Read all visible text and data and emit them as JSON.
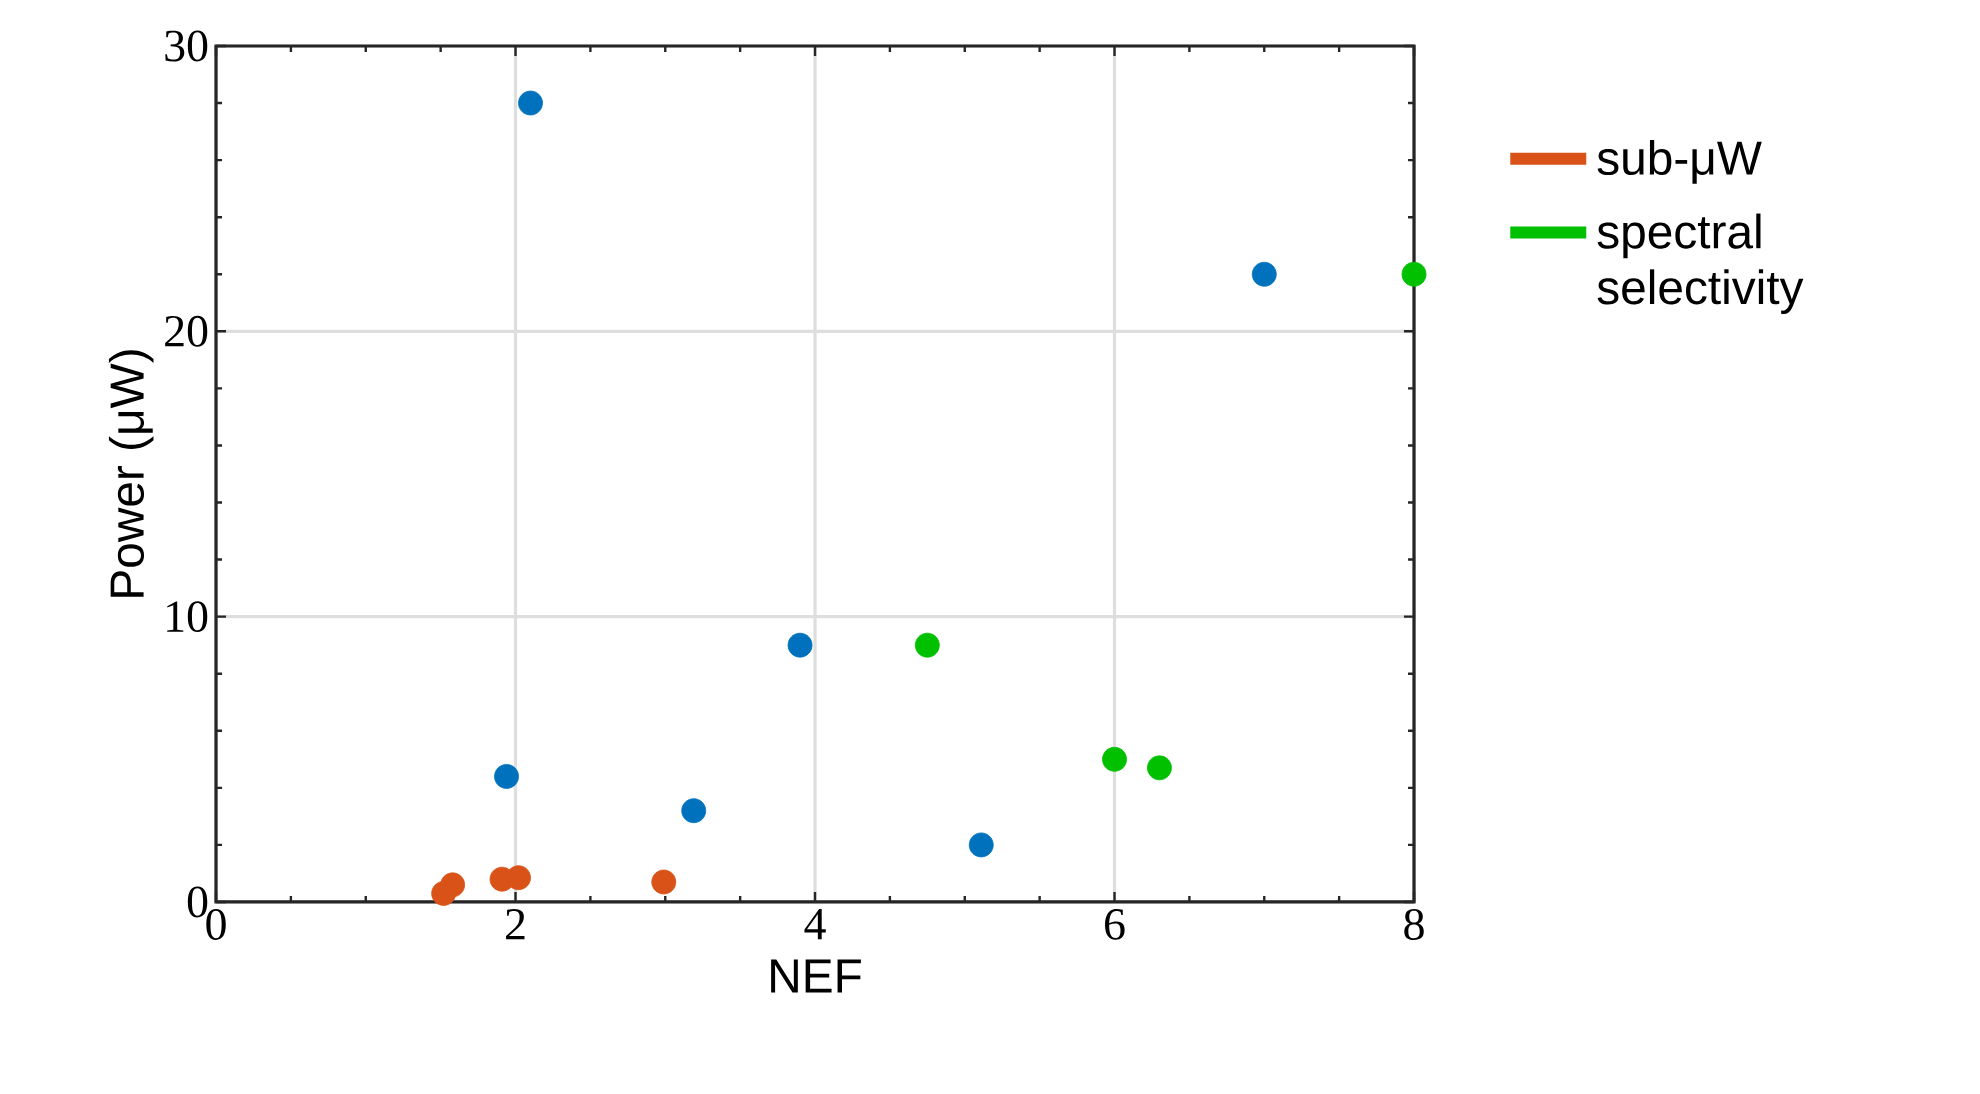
{
  "chart_data": {
    "type": "scatter",
    "xlabel": "NEF",
    "ylabel": "Power (μW)",
    "xlim": [
      0,
      8
    ],
    "ylim": [
      0,
      30
    ],
    "xticks": [
      0,
      2,
      4,
      6,
      8
    ],
    "yticks": [
      0,
      10,
      20,
      30
    ],
    "grid": true,
    "legend": "right",
    "marker": "circle",
    "series": [
      {
        "color": "#0072bd",
        "x": [
          2.1,
          7.0,
          3.9,
          1.94,
          3.19,
          5.11
        ],
        "values": [
          28.0,
          22.0,
          9.0,
          4.4,
          3.2,
          2.0
        ]
      },
      {
        "name": "sub-μW",
        "color": "#d95319",
        "x": [
          1.52,
          1.58,
          1.91,
          2.02,
          2.99
        ],
        "values": [
          0.3,
          0.6,
          0.8,
          0.85,
          0.7
        ]
      },
      {
        "name": "spectral selectivity",
        "color": "#00c000",
        "x": [
          8.0,
          4.75,
          6.0,
          6.3
        ],
        "values": [
          22.0,
          9.0,
          5.0,
          4.7
        ]
      }
    ]
  }
}
